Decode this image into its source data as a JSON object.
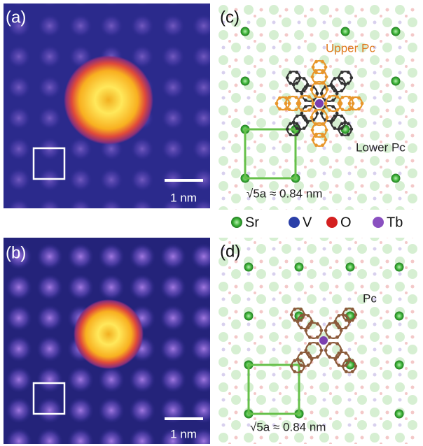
{
  "panels": {
    "a": {
      "label": "(a)",
      "scale_bar": "1 nm"
    },
    "b": {
      "label": "(b)",
      "scale_bar": "1 nm"
    },
    "c": {
      "label": "(c)",
      "upper_label": "Upper Pc",
      "lower_label": "Lower Pc",
      "lattice_label": "√5a ≈ 0.84 nm"
    },
    "d": {
      "label": "(d)",
      "molecule_label": "Pc",
      "lattice_label": "√5a ≈ 0.84 nm"
    }
  },
  "legend": [
    {
      "label": "Sr"
    },
    {
      "label": "V"
    },
    {
      "label": "O"
    },
    {
      "label": "Tb"
    }
  ]
}
